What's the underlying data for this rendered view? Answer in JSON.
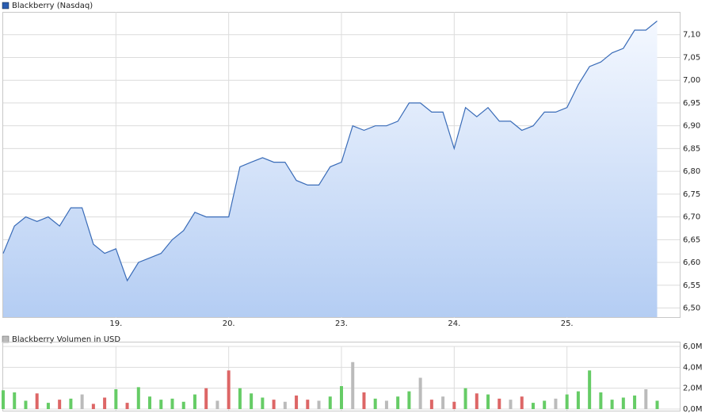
{
  "chart_data": [
    {
      "type": "area",
      "title": "Blackberry (Nasdaq)",
      "x": [
        0,
        0.1,
        0.2,
        0.3,
        0.4,
        0.5,
        0.6,
        0.7,
        0.8,
        0.9,
        1,
        1.1,
        1.2,
        1.3,
        1.4,
        1.5,
        1.6,
        1.7,
        1.8,
        1.9,
        2,
        2.1,
        2.2,
        2.3,
        2.4,
        2.5,
        2.6,
        2.7,
        2.8,
        2.9,
        3,
        3.1,
        3.2,
        3.3,
        3.4,
        3.5,
        3.6,
        3.7,
        3.8,
        3.9,
        4,
        4.1,
        4.2,
        4.3,
        4.4,
        4.5,
        4.6,
        4.7,
        4.8,
        4.9,
        5,
        5.1,
        5.2,
        5.3,
        5.4,
        5.5,
        5.6,
        5.7,
        5.8
      ],
      "series": [
        {
          "name": "Blackberry (Nasdaq)",
          "color": "#3a6cb8",
          "values": [
            6.62,
            6.68,
            6.7,
            6.69,
            6.7,
            6.68,
            6.72,
            6.72,
            6.64,
            6.62,
            6.63,
            6.56,
            6.6,
            6.61,
            6.62,
            6.65,
            6.67,
            6.71,
            6.7,
            6.7,
            6.7,
            6.81,
            6.82,
            6.83,
            6.82,
            6.82,
            6.78,
            6.77,
            6.77,
            6.81,
            6.82,
            6.9,
            6.89,
            6.9,
            6.9,
            6.91,
            6.95,
            6.95,
            6.93,
            6.93,
            6.85,
            6.94,
            6.92,
            6.94,
            6.91,
            6.91,
            6.89,
            6.9,
            6.93,
            6.93,
            6.94,
            6.99,
            7.03,
            7.04,
            7.06,
            7.07,
            7.11,
            7.11,
            7.13
          ]
        }
      ],
      "xlim": [
        0,
        6
      ],
      "xticks": [
        {
          "value": 1,
          "label": "19."
        },
        {
          "value": 2,
          "label": "20."
        },
        {
          "value": 3,
          "label": "23."
        },
        {
          "value": 4,
          "label": "24."
        },
        {
          "value": 5,
          "label": "25."
        }
      ],
      "ylim": [
        6.48,
        7.15
      ],
      "yticks": [
        {
          "value": 6.5,
          "label": "6,50"
        },
        {
          "value": 6.55,
          "label": "6,55"
        },
        {
          "value": 6.6,
          "label": "6,60"
        },
        {
          "value": 6.65,
          "label": "6,65"
        },
        {
          "value": 6.7,
          "label": "6,70"
        },
        {
          "value": 6.75,
          "label": "6,75"
        },
        {
          "value": 6.8,
          "label": "6,80"
        },
        {
          "value": 6.85,
          "label": "6,85"
        },
        {
          "value": 6.9,
          "label": "6,90"
        },
        {
          "value": 6.95,
          "label": "6,95"
        },
        {
          "value": 7.0,
          "label": "7,00"
        },
        {
          "value": 7.05,
          "label": "7,05"
        },
        {
          "value": 7.1,
          "label": "7,10"
        }
      ],
      "grid": true
    },
    {
      "type": "bar",
      "title": "Blackberry Volumen in USD",
      "x": [
        0,
        0.1,
        0.2,
        0.3,
        0.4,
        0.5,
        0.6,
        0.7,
        0.8,
        0.9,
        1,
        1.1,
        1.2,
        1.3,
        1.4,
        1.5,
        1.6,
        1.7,
        1.8,
        1.9,
        2,
        2.1,
        2.2,
        2.3,
        2.4,
        2.5,
        2.6,
        2.7,
        2.8,
        2.9,
        3,
        3.1,
        3.2,
        3.3,
        3.4,
        3.5,
        3.6,
        3.7,
        3.8,
        3.9,
        4,
        4.1,
        4.2,
        4.3,
        4.4,
        4.5,
        4.6,
        4.7,
        4.8,
        4.9,
        5,
        5.1,
        5.2,
        5.3,
        5.4,
        5.5,
        5.6,
        5.7,
        5.8
      ],
      "series": [
        {
          "name": "Blackberry Volumen in USD",
          "values": [
            1800000,
            1600000,
            800000,
            1500000,
            600000,
            900000,
            1000000,
            1400000,
            500000,
            1100000,
            1900000,
            600000,
            2100000,
            1200000,
            900000,
            1000000,
            700000,
            1400000,
            2000000,
            800000,
            3700000,
            2000000,
            1500000,
            1100000,
            900000,
            700000,
            1300000,
            900000,
            800000,
            1200000,
            2200000,
            4500000,
            1600000,
            1000000,
            800000,
            1200000,
            1700000,
            3000000,
            900000,
            1200000,
            700000,
            2000000,
            1500000,
            1400000,
            1000000,
            900000,
            1200000,
            600000,
            800000,
            1000000,
            1400000,
            1700000,
            3700000,
            1600000,
            900000,
            1100000,
            1300000,
            1900000,
            800000
          ],
          "colors": [
            "#6c6",
            "#6c6",
            "#6c6",
            "#d66",
            "#6c6",
            "#d66",
            "#6c6",
            "#bbb",
            "#d66",
            "#d66",
            "#6c6",
            "#d66",
            "#6c6",
            "#6c6",
            "#6c6",
            "#6c6",
            "#6c6",
            "#6c6",
            "#d66",
            "#bbb",
            "#d66",
            "#6c6",
            "#6c6",
            "#6c6",
            "#d66",
            "#bbb",
            "#d66",
            "#d66",
            "#bbb",
            "#6c6",
            "#6c6",
            "#bbb",
            "#d66",
            "#6c6",
            "#bbb",
            "#6c6",
            "#6c6",
            "#bbb",
            "#d66",
            "#bbb",
            "#d66",
            "#6c6",
            "#d66",
            "#6c6",
            "#d66",
            "#bbb",
            "#d66",
            "#6c6",
            "#6c6",
            "#bbb",
            "#6c6",
            "#6c6",
            "#6c6",
            "#6c6",
            "#6c6",
            "#6c6",
            "#6c6",
            "#bbb",
            "#6c6"
          ]
        }
      ],
      "xlim": [
        0,
        6
      ],
      "ylim": [
        0,
        6000000
      ],
      "yticks": [
        {
          "value": 0,
          "label": "0,0M"
        },
        {
          "value": 2000000,
          "label": "2,0M"
        },
        {
          "value": 4000000,
          "label": "4,0M"
        },
        {
          "value": 6000000,
          "label": "6,0M"
        }
      ],
      "grid": true
    }
  ]
}
